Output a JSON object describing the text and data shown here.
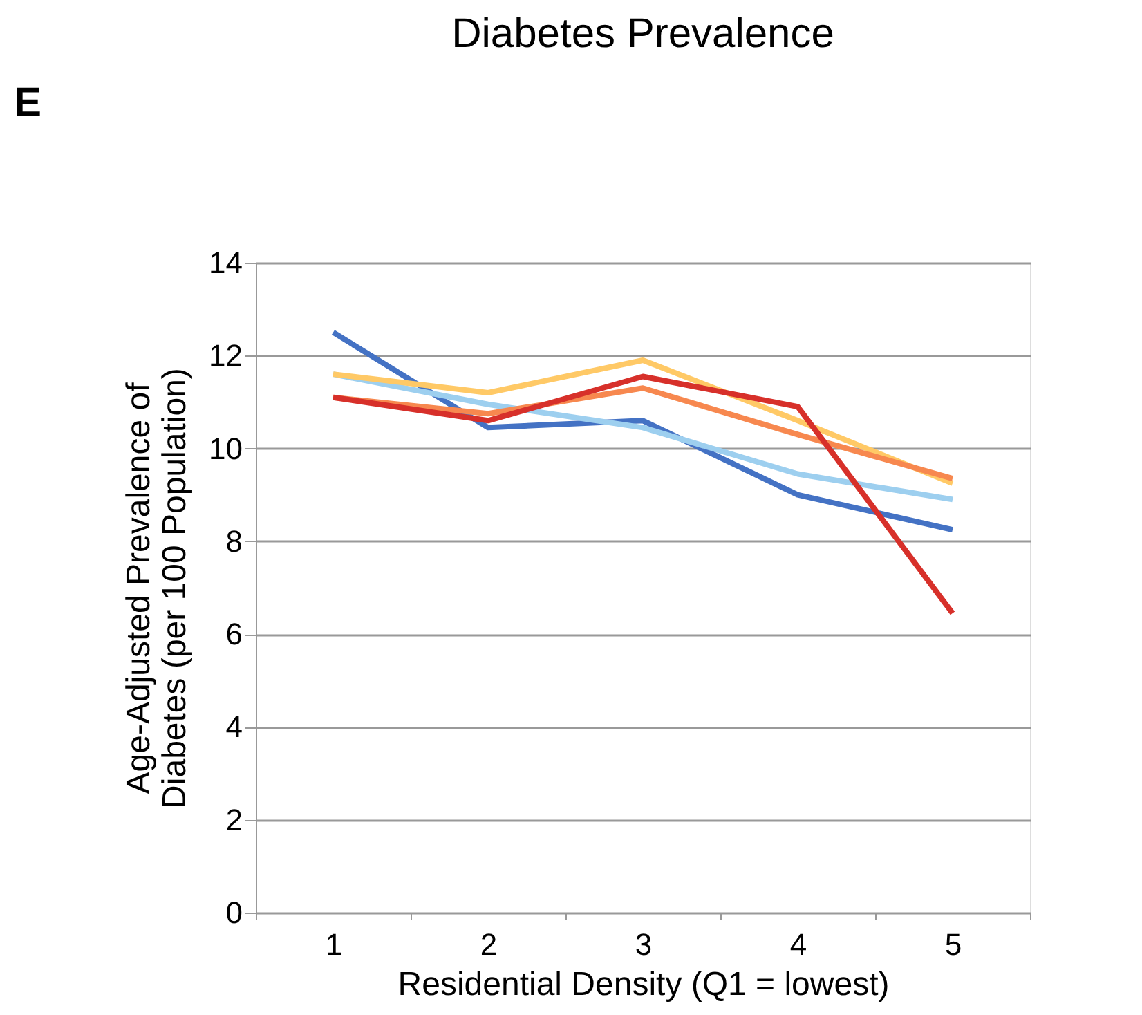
{
  "chart_data": {
    "type": "line",
    "title": "Diabetes Prevalence",
    "xlabel": "Residential Density (Q1 = lowest)",
    "ylabel": "Age-Adjusted Prevalence of Diabetes (per 100 Population)",
    "annotations": [
      "E"
    ],
    "categories": [
      "1",
      "2",
      "3",
      "4",
      "5"
    ],
    "series": [
      {
        "color": "#4472c4",
        "values": [
          12.5,
          10.45,
          10.6,
          9.0,
          8.25
        ]
      },
      {
        "color": "#9dcfef",
        "values": [
          11.6,
          10.95,
          10.45,
          9.45,
          8.9
        ]
      },
      {
        "color": "#ffc966",
        "values": [
          11.6,
          11.2,
          11.9,
          10.6,
          9.25
        ]
      },
      {
        "color": "#f7884f",
        "values": [
          11.1,
          10.75,
          11.3,
          10.3,
          9.35
        ]
      },
      {
        "color": "#d7302a",
        "values": [
          11.1,
          10.6,
          11.55,
          10.9,
          6.45
        ]
      }
    ],
    "ylim": [
      0,
      14
    ],
    "yticks": [
      0,
      2,
      4,
      6,
      8,
      10,
      12,
      14
    ],
    "grid": "y",
    "legend": false,
    "marker": "none",
    "line_style": "solid"
  }
}
